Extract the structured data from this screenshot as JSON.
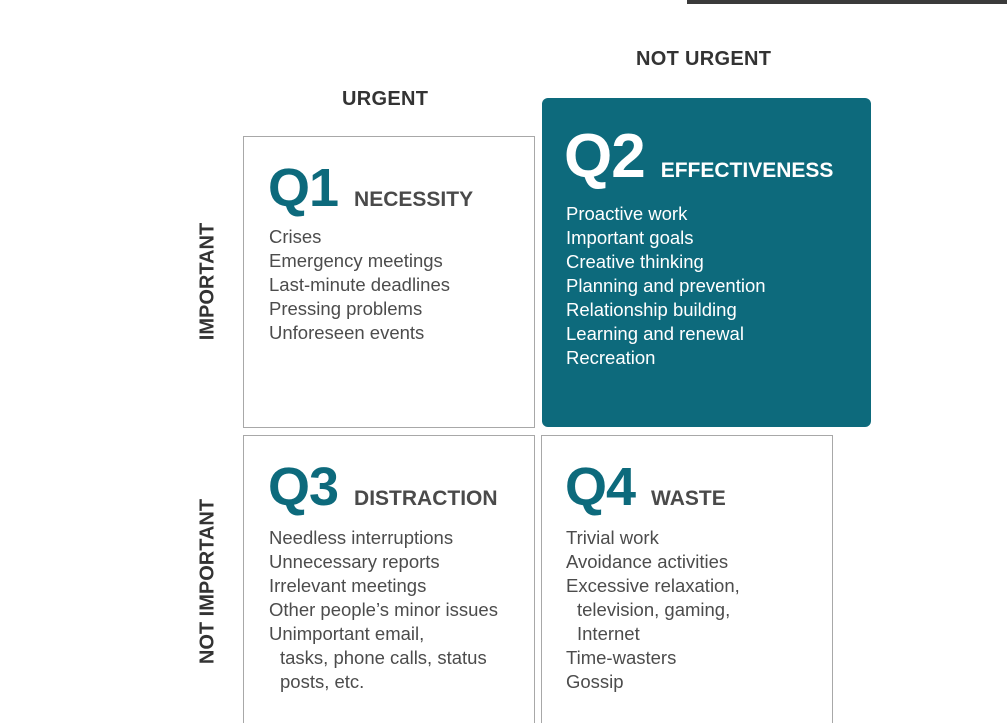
{
  "columns": {
    "urgent": "URGENT",
    "not_urgent": "NOT URGENT"
  },
  "rows": {
    "important": "IMPORTANT",
    "not_important": "NOT IMPORTANT"
  },
  "quadrants": {
    "q1": {
      "number": "Q1",
      "name": "NECESSITY",
      "items": [
        "Crises",
        "Emergency meetings",
        "Last-minute deadlines",
        "Pressing problems",
        "Unforeseen events"
      ]
    },
    "q2": {
      "number": "Q2",
      "name": "EFFECTIVENESS",
      "items": [
        "Proactive work",
        "Important goals",
        "Creative thinking",
        "Planning and prevention",
        "Relationship building",
        "Learning and renewal",
        "Recreation"
      ]
    },
    "q3": {
      "number": "Q3",
      "name": "DISTRACTION",
      "items": [
        "Needless interruptions",
        "Unnecessary reports",
        "Irrelevant meetings",
        "Other people’s minor issues",
        "Unimportant email,",
        "tasks, phone calls, status",
        "posts, etc."
      ]
    },
    "q4": {
      "number": "Q4",
      "name": "WASTE",
      "items": [
        "Trivial work",
        "Avoidance activities",
        "Excessive relaxation,",
        "television, gaming,",
        "Internet",
        "Time-wasters",
        "Gossip"
      ]
    }
  },
  "colors": {
    "accent": "#0d6a7c",
    "label_text": "#333333",
    "body_text": "#4c4c4c",
    "border": "#a8a8a8"
  }
}
